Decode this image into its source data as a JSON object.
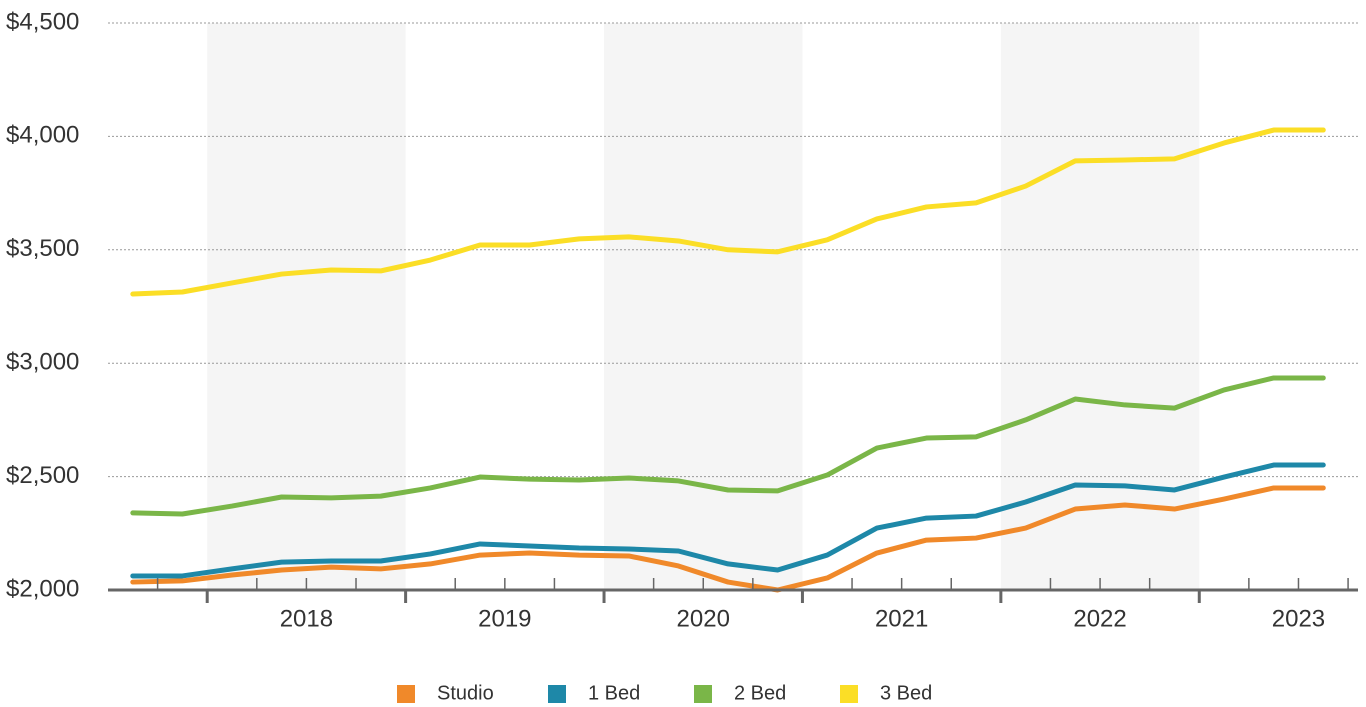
{
  "chart_data": {
    "type": "line",
    "x": [
      2017.625,
      2017.875,
      2018.125,
      2018.375,
      2018.625,
      2018.875,
      2019.125,
      2019.375,
      2019.625,
      2019.875,
      2020.125,
      2020.375,
      2020.625,
      2020.875,
      2021.125,
      2021.375,
      2021.625,
      2021.875,
      2022.125,
      2022.375,
      2022.625,
      2022.875,
      2023.125,
      2023.375,
      2023.625
    ],
    "series": [
      {
        "name": "Studio",
        "color": "#f0892a",
        "values": [
          2035,
          2040,
          2066,
          2088,
          2101,
          2093,
          2115,
          2154,
          2163,
          2154,
          2150,
          2106,
          2035,
          2000,
          2053,
          2163,
          2220,
          2229,
          2273,
          2357,
          2375,
          2357,
          2401,
          2450,
          2450
        ]
      },
      {
        "name": "1 Bed",
        "color": "#1e88a8",
        "values": [
          2062,
          2062,
          2093,
          2123,
          2128,
          2128,
          2159,
          2203,
          2194,
          2185,
          2181,
          2172,
          2115,
          2088,
          2154,
          2273,
          2317,
          2326,
          2388,
          2463,
          2459,
          2441,
          2498,
          2551,
          2551
        ]
      },
      {
        "name": "2 Bed",
        "color": "#7ab648",
        "values": [
          2340,
          2335,
          2370,
          2410,
          2406,
          2414,
          2450,
          2498,
          2489,
          2485,
          2494,
          2481,
          2441,
          2437,
          2507,
          2626,
          2670,
          2675,
          2750,
          2842,
          2816,
          2802,
          2882,
          2935,
          2935
        ]
      },
      {
        "name": "3 Bed",
        "color": "#fbde26",
        "values": [
          3305,
          3314,
          3354,
          3393,
          3411,
          3407,
          3455,
          3521,
          3521,
          3548,
          3557,
          3539,
          3500,
          3491,
          3544,
          3636,
          3689,
          3707,
          3781,
          3892,
          3896,
          3901,
          3971,
          4028,
          4028
        ]
      }
    ],
    "xlim": [
      2017.5,
      2023.8
    ],
    "xticks": [
      {
        "value": 2018.5,
        "label": "2018"
      },
      {
        "value": 2019.5,
        "label": "2019"
      },
      {
        "value": 2020.5,
        "label": "2020"
      },
      {
        "value": 2021.5,
        "label": "2021"
      },
      {
        "value": 2022.5,
        "label": "2022"
      },
      {
        "value": 2023.5,
        "label": "2023"
      }
    ],
    "year_ticks": [
      2018,
      2019,
      2020,
      2021,
      2022,
      2023
    ],
    "minor_xticks": [
      2017.75,
      2018.25,
      2018.5,
      2018.75,
      2019.25,
      2019.5,
      2019.75,
      2020.25,
      2020.5,
      2020.75,
      2021.25,
      2021.5,
      2021.75,
      2022.25,
      2022.5,
      2022.75,
      2023.25,
      2023.5,
      2023.75
    ],
    "ylim": [
      2000,
      4500
    ],
    "yticks": [
      {
        "value": 2000,
        "label": "$2,000"
      },
      {
        "value": 2500,
        "label": "$2,500"
      },
      {
        "value": 3000,
        "label": "$3,000"
      },
      {
        "value": 3500,
        "label": "$3,500"
      },
      {
        "value": 4000,
        "label": "$4,000"
      },
      {
        "value": 4500,
        "label": "$4,500"
      }
    ],
    "grid": true,
    "legend": "bottom"
  }
}
